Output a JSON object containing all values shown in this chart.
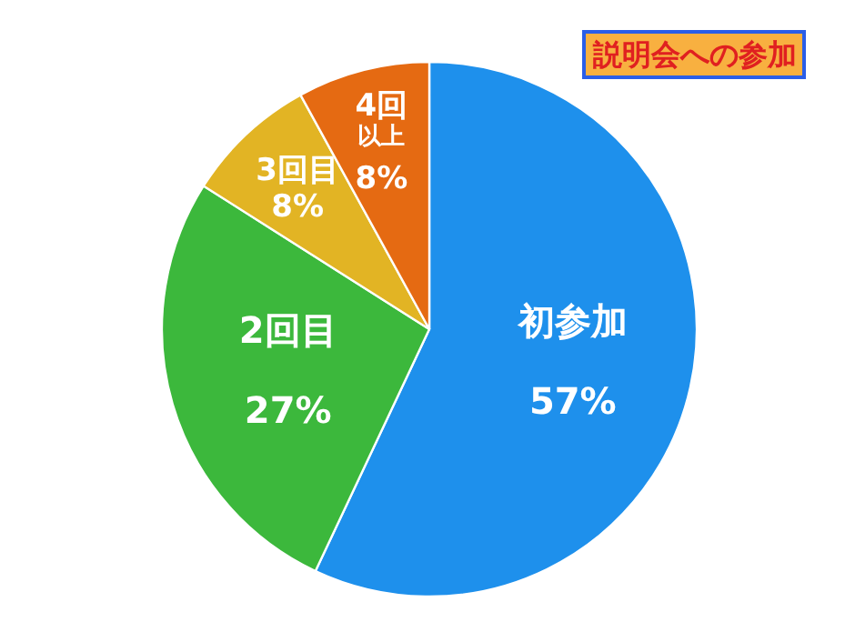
{
  "chart_data": {
    "type": "pie",
    "title": "説明会への参加",
    "categories": [
      "初参加",
      "2回目",
      "3回目",
      "4回以上"
    ],
    "values": [
      57,
      27,
      8,
      8
    ],
    "colors": [
      "#1e90ec",
      "#3cb83c",
      "#e2b424",
      "#e56a12"
    ],
    "value_labels": [
      "57%",
      "27%",
      "8%",
      "8%"
    ]
  }
}
